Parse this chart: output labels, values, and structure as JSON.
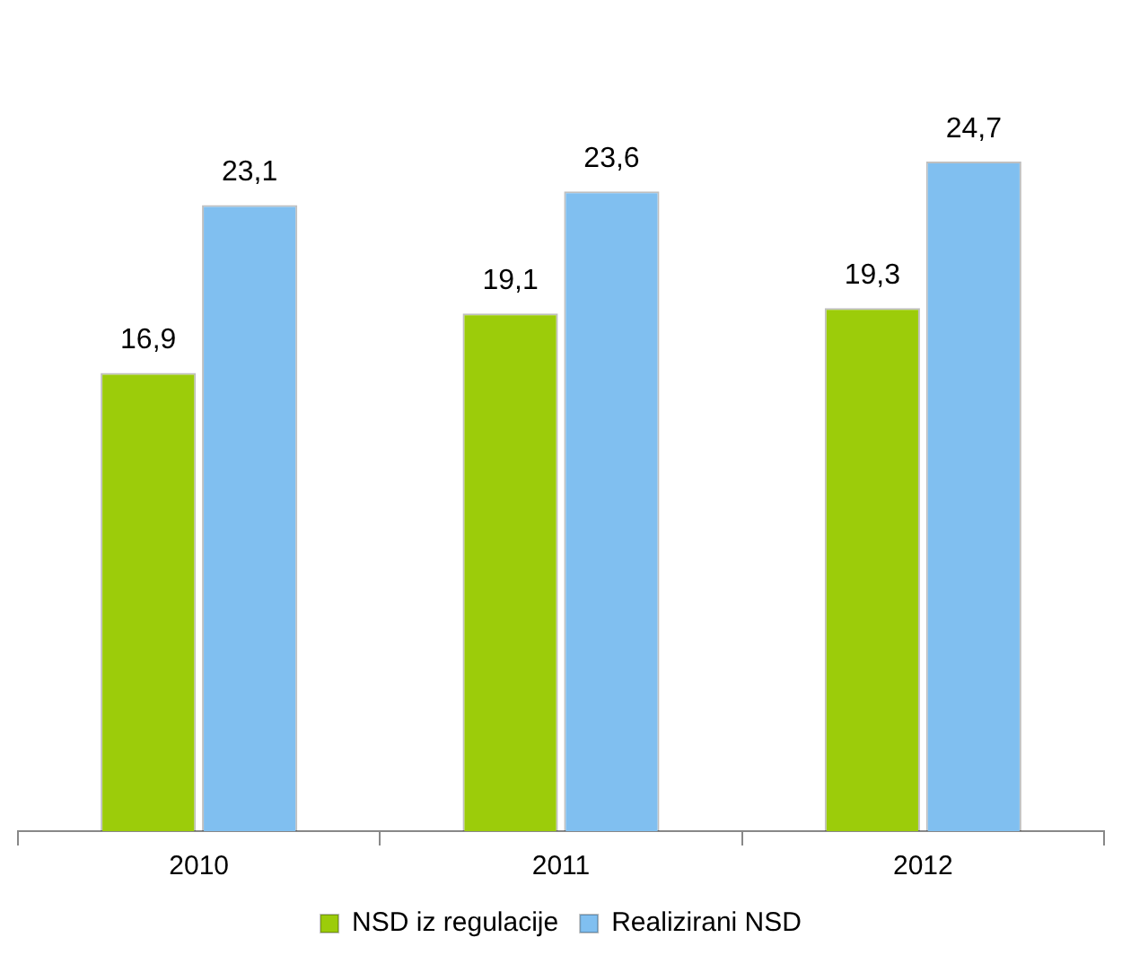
{
  "chart_data": {
    "type": "bar",
    "categories": [
      "2010",
      "2011",
      "2012"
    ],
    "series": [
      {
        "name": "NSD iz regulacije",
        "color": "#9ccc0a",
        "values": [
          16.9,
          19.1,
          19.3
        ],
        "value_labels": [
          "16,9",
          "19,1",
          "19,3"
        ]
      },
      {
        "name": "Realizirani NSD",
        "color": "#80bff0",
        "values": [
          23.1,
          23.6,
          24.7
        ],
        "value_labels": [
          "23,1",
          "23,6",
          "24,7"
        ]
      }
    ],
    "legend": "bottom",
    "grid": false
  }
}
